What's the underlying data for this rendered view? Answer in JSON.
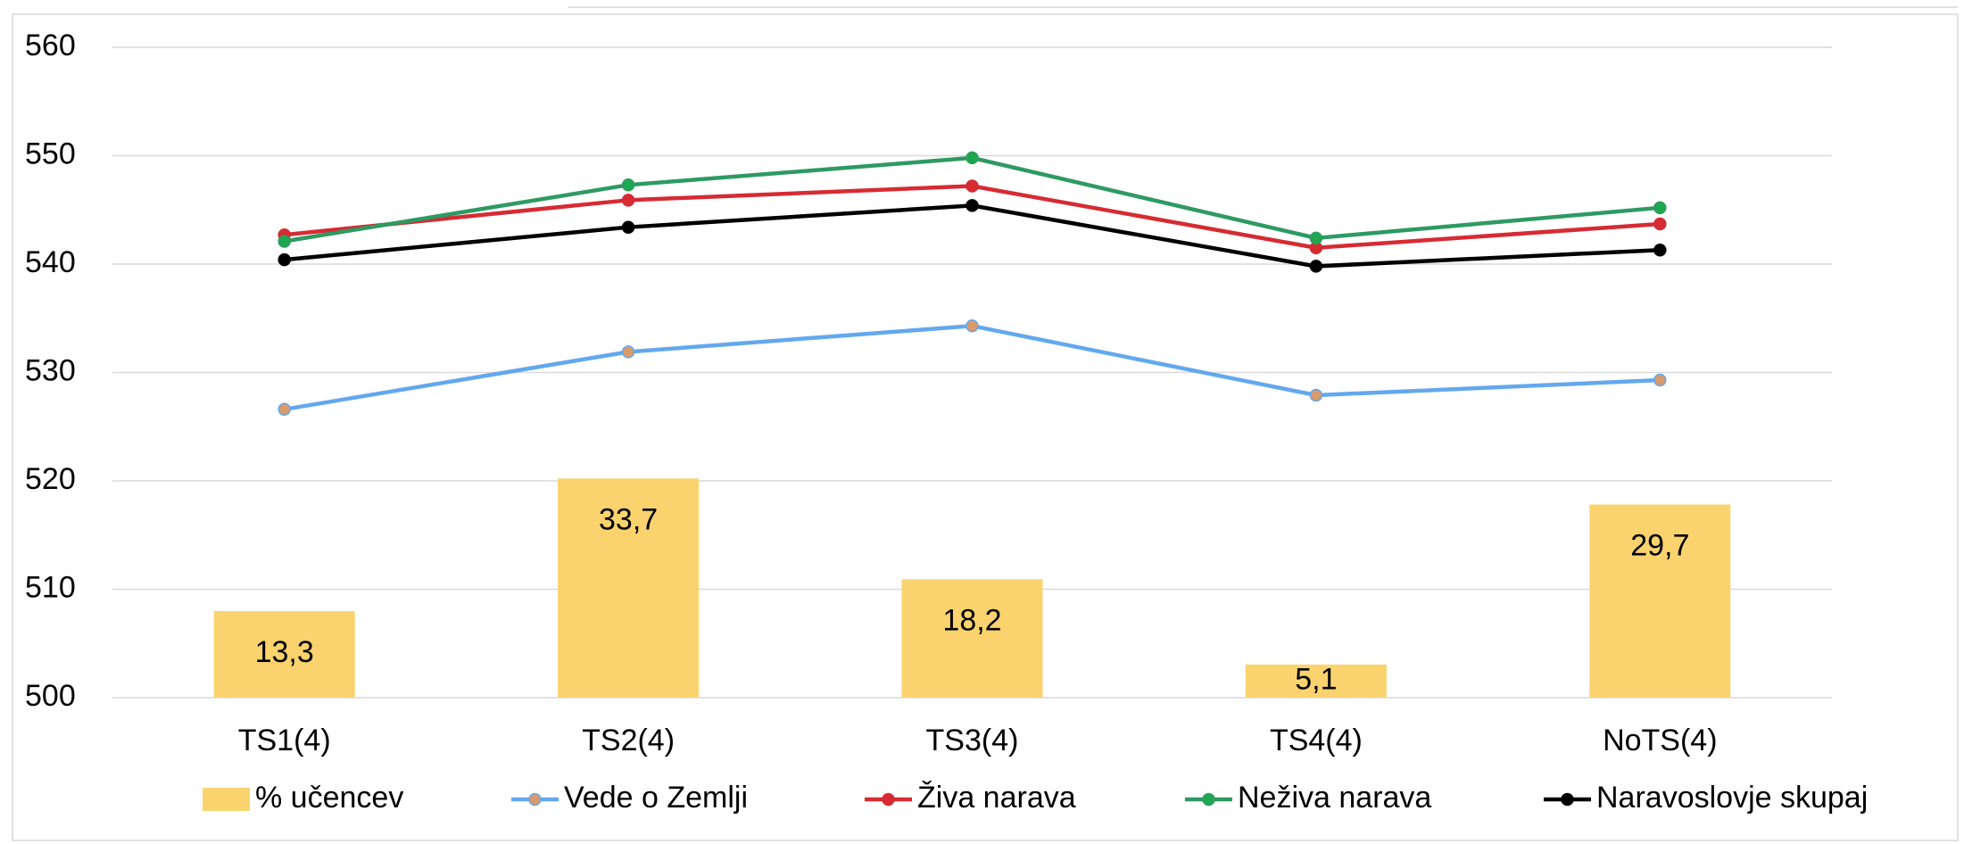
{
  "chart_data": {
    "type": "bar-line",
    "categories": [
      "TS1(4)",
      "TS2(4)",
      "TS3(4)",
      "TS4(4)",
      "NoTS(4)"
    ],
    "ylim": [
      500,
      560
    ],
    "yticks": [
      500,
      510,
      520,
      530,
      540,
      550,
      560
    ],
    "grid": true,
    "y2lim": [
      0,
      100
    ],
    "legend": "bottom",
    "series": [
      {
        "name": "% učencev",
        "type": "bar",
        "axis": "y2",
        "color": "#fad36f",
        "values": [
          13.3,
          33.7,
          18.2,
          5.1,
          29.7
        ],
        "value_labels": [
          "13,3",
          "33,7",
          "18,2",
          "5,1",
          "29,7"
        ]
      },
      {
        "name": "Vede o Zemlji",
        "type": "line",
        "color": "#63a8ee",
        "marker_color": "#d99a6c",
        "values": [
          526.6,
          531.9,
          534.3,
          527.9,
          529.3
        ]
      },
      {
        "name": "Živa narava",
        "type": "line",
        "color": "#d62b33",
        "values": [
          542.7,
          545.9,
          547.2,
          541.5,
          543.7
        ]
      },
      {
        "name": "Neživa narava",
        "type": "line",
        "color": "#2e9a62",
        "marker_color": "#1fa74f",
        "values": [
          542.1,
          547.3,
          549.8,
          542.4,
          545.2
        ]
      },
      {
        "name": "Naravoslovje skupaj",
        "type": "line",
        "color": "#000000",
        "values": [
          540.4,
          543.4,
          545.4,
          539.8,
          541.3
        ]
      }
    ]
  }
}
